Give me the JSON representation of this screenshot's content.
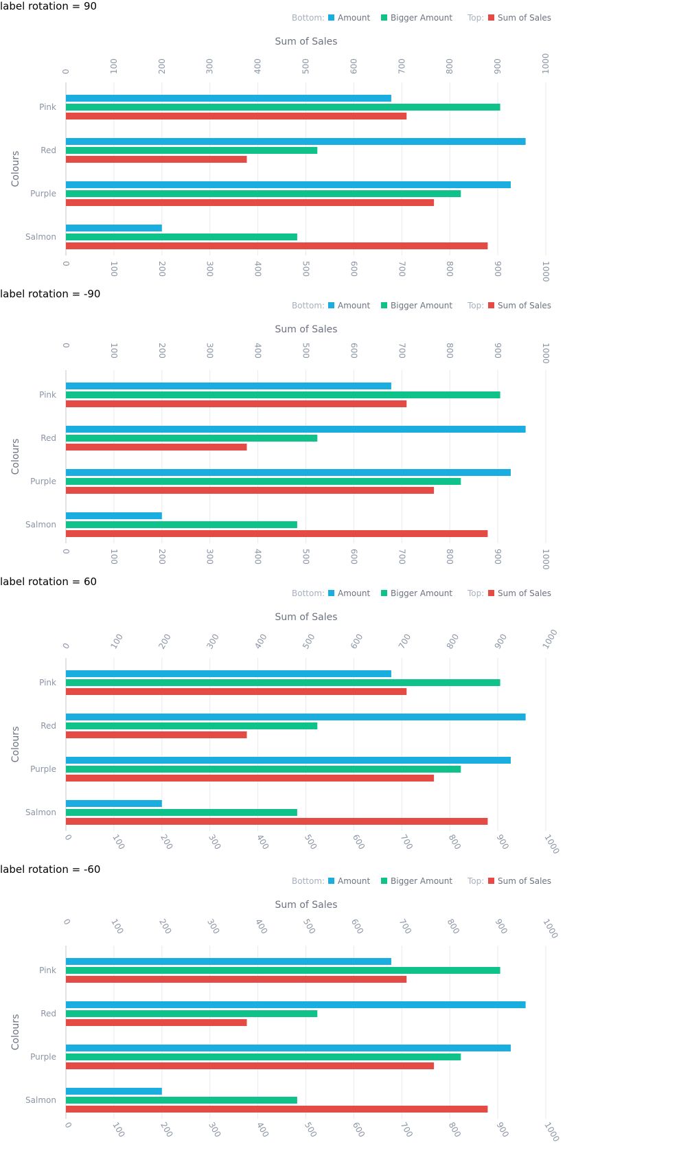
{
  "colors": {
    "amount": "#1aaee0",
    "bigger_amount": "#0fc289",
    "sum_of_sales": "#e54b45",
    "tick_text": "#8b95a5",
    "legend_group_text": "#a7b0bd",
    "legend_text": "#6c7280",
    "title_text": "#6c7280",
    "grid": "#e8eaed",
    "axis": "#c3c8cf"
  },
  "legend": {
    "bottom_label": "Bottom:",
    "top_label": "Top:",
    "amount": "Amount",
    "bigger_amount": "Bigger Amount",
    "sum_of_sales": "Sum of Sales"
  },
  "chart_data": [
    {
      "panel_label": "label rotation = 90",
      "type": "bar",
      "orientation": "horizontal",
      "label_rotation": 90,
      "title": "Sum of Sales",
      "ylabel": "Colours",
      "categories": [
        "Pink",
        "Red",
        "Purple",
        "Salmon"
      ],
      "series": [
        {
          "name": "Amount",
          "axis": "bottom",
          "values": [
            678,
            958,
            927,
            200
          ]
        },
        {
          "name": "Bigger Amount",
          "axis": "bottom",
          "values": [
            905,
            524,
            823,
            482
          ]
        },
        {
          "name": "Sum of Sales",
          "axis": "top",
          "values": [
            710,
            377,
            767,
            879
          ]
        }
      ],
      "xlim": [
        0,
        1000
      ],
      "ticks": [
        "0",
        "100",
        "200",
        "300",
        "400",
        "500",
        "600",
        "700",
        "800",
        "900",
        "1000"
      ],
      "grid": true,
      "legend_position": "top-right"
    },
    {
      "panel_label": "label rotation = -90",
      "type": "bar",
      "orientation": "horizontal",
      "label_rotation": -90,
      "title": "Sum of Sales",
      "ylabel": "Colours",
      "categories": [
        "Pink",
        "Red",
        "Purple",
        "Salmon"
      ],
      "series": [
        {
          "name": "Amount",
          "axis": "bottom",
          "values": [
            678,
            958,
            927,
            200
          ]
        },
        {
          "name": "Bigger Amount",
          "axis": "bottom",
          "values": [
            905,
            524,
            823,
            482
          ]
        },
        {
          "name": "Sum of Sales",
          "axis": "top",
          "values": [
            710,
            377,
            767,
            879
          ]
        }
      ],
      "xlim": [
        0,
        1000
      ],
      "ticks": [
        "0",
        "100",
        "200",
        "300",
        "400",
        "500",
        "600",
        "700",
        "800",
        "900",
        "1000"
      ],
      "grid": true,
      "legend_position": "top-right"
    },
    {
      "panel_label": "label rotation = 60",
      "type": "bar",
      "orientation": "horizontal",
      "label_rotation": 60,
      "title": "Sum of Sales",
      "ylabel": "Colours",
      "categories": [
        "Pink",
        "Red",
        "Purple",
        "Salmon"
      ],
      "series": [
        {
          "name": "Amount",
          "axis": "bottom",
          "values": [
            678,
            958,
            927,
            200
          ]
        },
        {
          "name": "Bigger Amount",
          "axis": "bottom",
          "values": [
            905,
            524,
            823,
            482
          ]
        },
        {
          "name": "Sum of Sales",
          "axis": "top",
          "values": [
            710,
            377,
            767,
            879
          ]
        }
      ],
      "xlim": [
        0,
        1000
      ],
      "ticks": [
        "0",
        "100",
        "200",
        "300",
        "400",
        "500",
        "600",
        "700",
        "800",
        "900",
        "1000"
      ],
      "grid": true,
      "legend_position": "top-right"
    },
    {
      "panel_label": "label rotation = -60",
      "type": "bar",
      "orientation": "horizontal",
      "label_rotation": -60,
      "title": "Sum of Sales",
      "ylabel": "Colours",
      "categories": [
        "Pink",
        "Red",
        "Purple",
        "Salmon"
      ],
      "series": [
        {
          "name": "Amount",
          "axis": "bottom",
          "values": [
            678,
            958,
            927,
            200
          ]
        },
        {
          "name": "Bigger Amount",
          "axis": "bottom",
          "values": [
            905,
            524,
            823,
            482
          ]
        },
        {
          "name": "Sum of Sales",
          "axis": "top",
          "values": [
            710,
            377,
            767,
            879
          ]
        }
      ],
      "xlim": [
        0,
        1000
      ],
      "ticks": [
        "0",
        "100",
        "200",
        "300",
        "400",
        "500",
        "600",
        "700",
        "800",
        "900",
        "1000"
      ],
      "grid": true,
      "legend_position": "top-right"
    }
  ]
}
